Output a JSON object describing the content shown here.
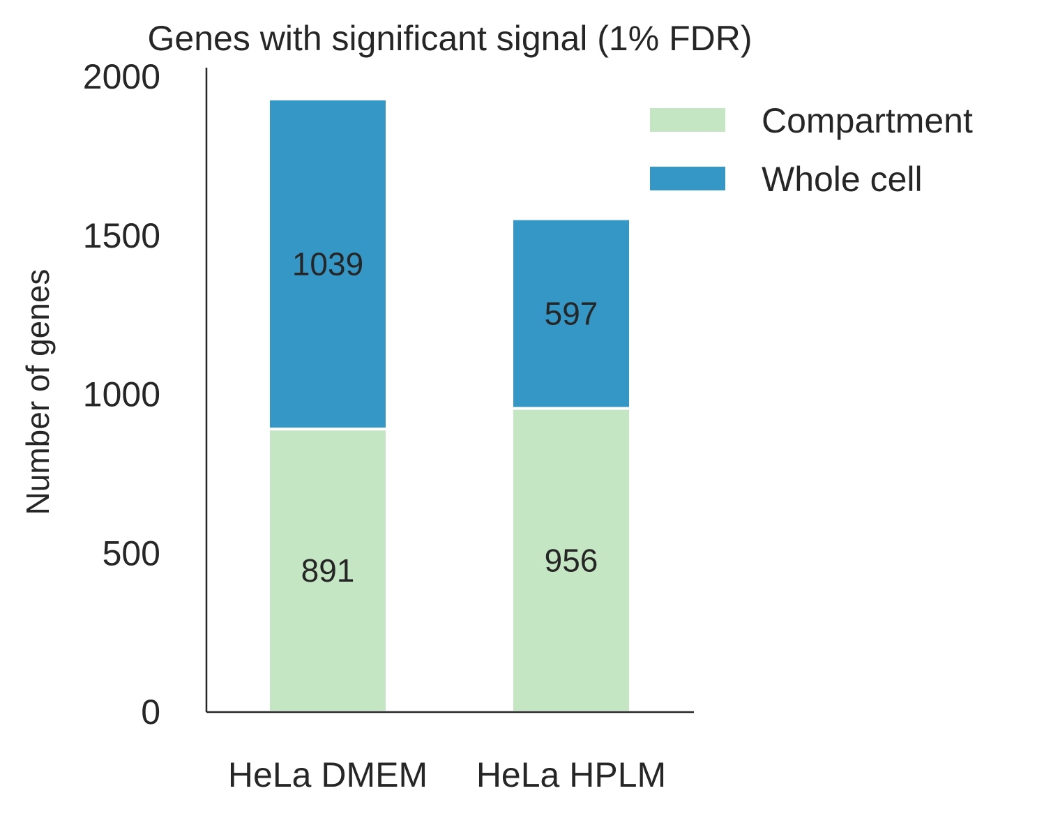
{
  "chart_data": {
    "type": "bar",
    "stacked": true,
    "title": "Genes with significant signal (1% FDR)",
    "xlabel": "",
    "ylabel": "Number of genes",
    "categories": [
      "HeLa DMEM",
      "HeLa HPLM"
    ],
    "series": [
      {
        "name": "Compartment",
        "values": [
          891,
          956
        ],
        "color": "#c4e6c2"
      },
      {
        "name": "Whole cell",
        "values": [
          1039,
          597
        ],
        "color": "#3597c5"
      }
    ],
    "ylim": [
      0,
      2000
    ],
    "yticks": [
      0,
      500,
      1000,
      1500,
      2000
    ],
    "grid": false,
    "legend": "top-right"
  }
}
